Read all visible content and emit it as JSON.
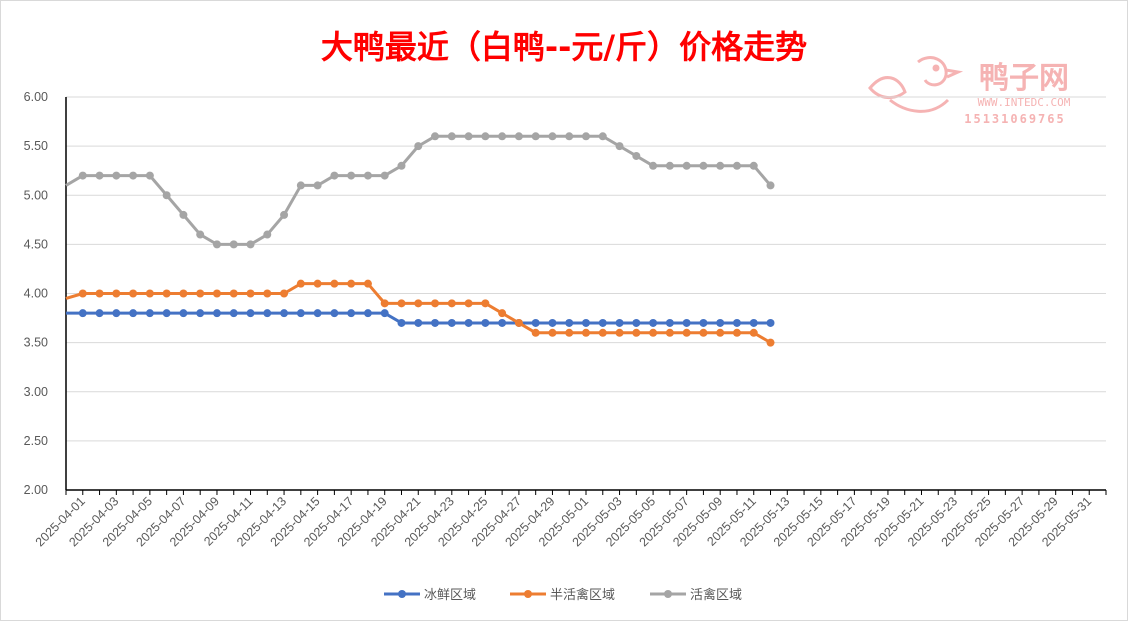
{
  "chart_data": {
    "type": "line",
    "title": "大鸭最近（白鸭--元/斤）价格走势",
    "xlabel": "",
    "ylabel": "",
    "ylim": [
      2.0,
      6.0
    ],
    "y_ticks": [
      "6.00",
      "5.50",
      "5.00",
      "4.50",
      "4.00",
      "3.50",
      "3.00",
      "2.50",
      "2.00"
    ],
    "x_start": "2025-03-31",
    "x_tick_labels": [
      "2025-04-01",
      "2025-04-03",
      "2025-04-05",
      "2025-04-07",
      "2025-04-09",
      "2025-04-11",
      "2025-04-13",
      "2025-04-15",
      "2025-04-17",
      "2025-04-19",
      "2025-04-21",
      "2025-04-23",
      "2025-04-25",
      "2025-04-27",
      "2025-04-29",
      "2025-05-01",
      "2025-05-03",
      "2025-05-05",
      "2025-05-07",
      "2025-05-09",
      "2025-05-11",
      "2025-05-13",
      "2025-05-15",
      "2025-05-17",
      "2025-05-19",
      "2025-05-21",
      "2025-05-23",
      "2025-05-25",
      "2025-05-27",
      "2025-05-29",
      "2025-05-31"
    ],
    "grid": true,
    "legend": "bottom",
    "series": [
      {
        "name": "冰鲜区域",
        "color": "#4472C4",
        "values": [
          3.8,
          3.8,
          3.8,
          3.8,
          3.8,
          3.8,
          3.8,
          3.8,
          3.8,
          3.8,
          3.8,
          3.8,
          3.8,
          3.8,
          3.8,
          3.8,
          3.8,
          3.8,
          3.8,
          3.8,
          3.7,
          3.7,
          3.7,
          3.7,
          3.7,
          3.7,
          3.7,
          3.7,
          3.7,
          3.7,
          3.7,
          3.7,
          3.7,
          3.7,
          3.7,
          3.7,
          3.7,
          3.7,
          3.7,
          3.7,
          3.7,
          3.7,
          3.7
        ]
      },
      {
        "name": "半活禽区域",
        "color": "#ED7D31",
        "values": [
          3.95,
          4.0,
          4.0,
          4.0,
          4.0,
          4.0,
          4.0,
          4.0,
          4.0,
          4.0,
          4.0,
          4.0,
          4.0,
          4.0,
          4.1,
          4.1,
          4.1,
          4.1,
          4.1,
          3.9,
          3.9,
          3.9,
          3.9,
          3.9,
          3.9,
          3.9,
          3.8,
          3.7,
          3.6,
          3.6,
          3.6,
          3.6,
          3.6,
          3.6,
          3.6,
          3.6,
          3.6,
          3.6,
          3.6,
          3.6,
          3.6,
          3.6,
          3.5
        ]
      },
      {
        "name": "活禽区域",
        "color": "#A5A5A5",
        "values": [
          5.1,
          5.2,
          5.2,
          5.2,
          5.2,
          5.2,
          5.0,
          4.8,
          4.6,
          4.5,
          4.5,
          4.5,
          4.6,
          4.8,
          5.1,
          5.1,
          5.2,
          5.2,
          5.2,
          5.2,
          5.3,
          5.5,
          5.6,
          5.6,
          5.6,
          5.6,
          5.6,
          5.6,
          5.6,
          5.6,
          5.6,
          5.6,
          5.6,
          5.5,
          5.4,
          5.3,
          5.3,
          5.3,
          5.3,
          5.3,
          5.3,
          5.3,
          5.1
        ]
      }
    ]
  },
  "watermark": {
    "brand": "鸭子网",
    "url": "WWW.INTEDC.COM",
    "phone": "15131069765",
    "color": "#F4A6A6"
  }
}
